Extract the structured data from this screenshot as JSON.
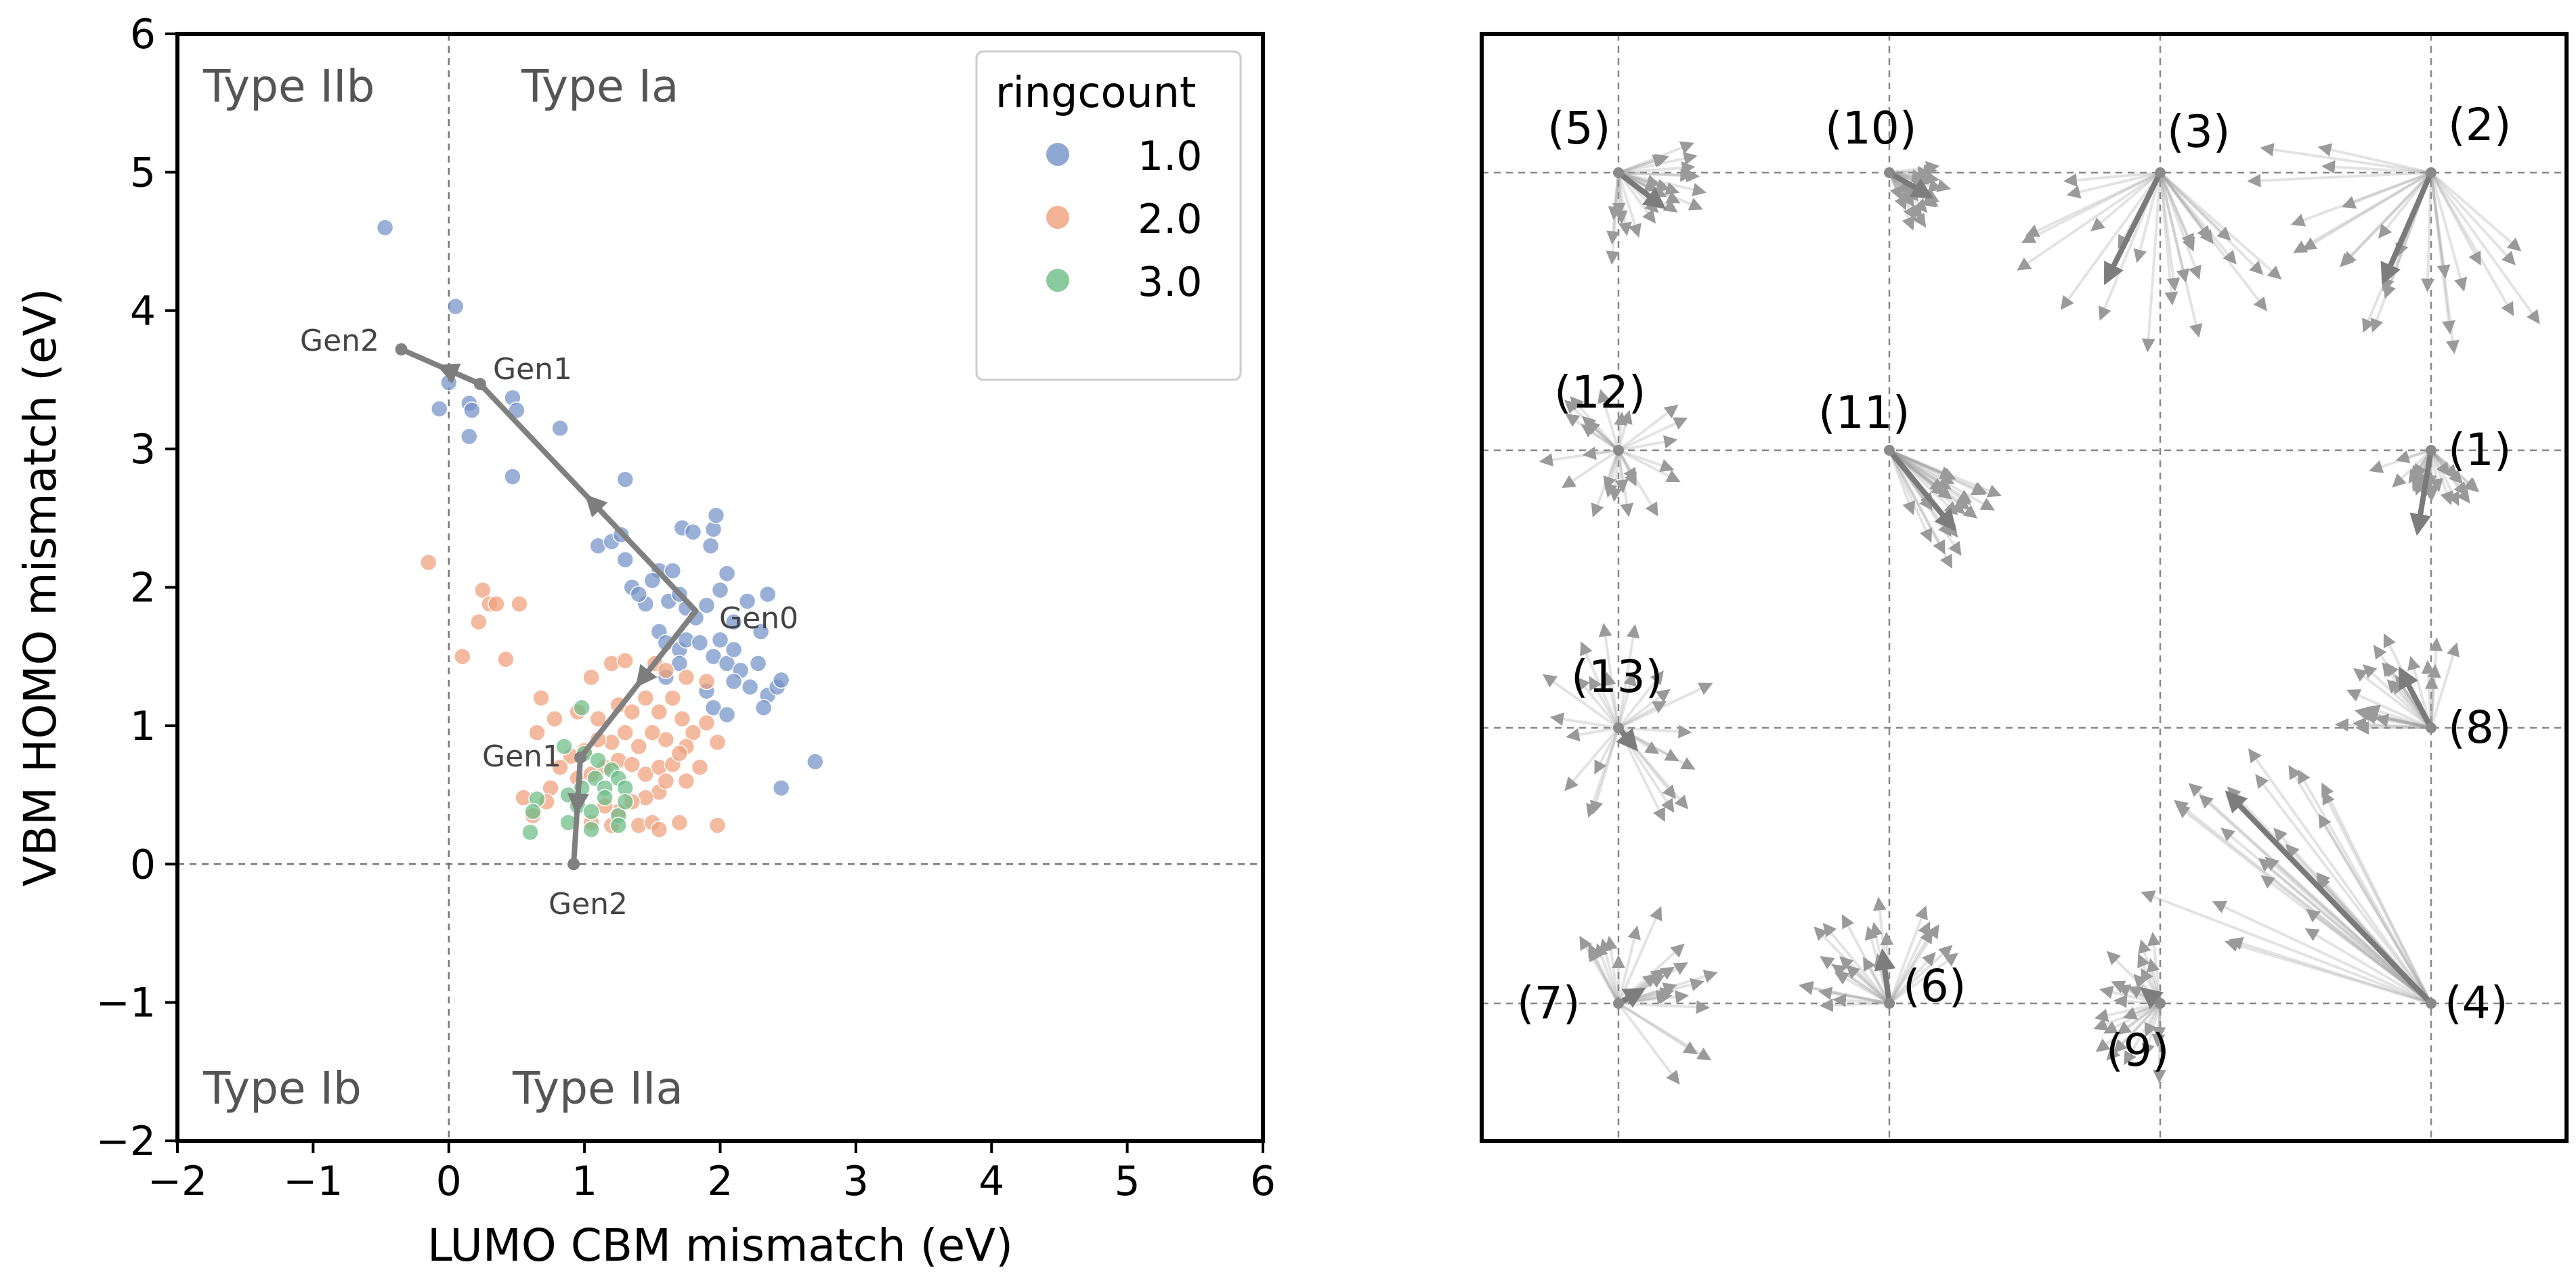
{
  "chart_data": [
    {
      "type": "scatter",
      "xlabel": "LUMO CBM mismatch (eV)",
      "ylabel": "VBM HOMO mismatch (eV)",
      "xlim": [
        -2,
        6
      ],
      "ylim": [
        -2,
        6
      ],
      "x_ticks": [
        "−2",
        "−1",
        "0",
        "1",
        "2",
        "3",
        "4",
        "5",
        "6"
      ],
      "y_ticks": [
        "−2",
        "−1",
        "0",
        "1",
        "2",
        "3",
        "4",
        "5",
        "6"
      ],
      "reference_lines": {
        "x": 0,
        "y": 0
      },
      "region_labels": [
        "Type IIb",
        "Type Ia",
        "Type Ib",
        "Type IIa"
      ],
      "legend": {
        "title": "ringcount",
        "placement": "top-right",
        "entries": [
          "1.0",
          "2.0",
          "3.0"
        ]
      },
      "series": [
        {
          "name": "1.0",
          "color": "#7391c8",
          "points": [
            [
              -0.47,
              4.6
            ],
            [
              0.05,
              4.03
            ],
            [
              0.0,
              3.48
            ],
            [
              0.15,
              3.33
            ],
            [
              0.17,
              3.28
            ],
            [
              -0.07,
              3.29
            ],
            [
              0.15,
              3.09
            ],
            [
              0.47,
              3.37
            ],
            [
              0.5,
              3.28
            ],
            [
              0.82,
              3.15
            ],
            [
              0.47,
              2.8
            ],
            [
              1.3,
              2.78
            ],
            [
              1.1,
              2.3
            ],
            [
              1.2,
              2.33
            ],
            [
              1.27,
              2.38
            ],
            [
              1.3,
              2.2
            ],
            [
              1.55,
              2.12
            ],
            [
              1.65,
              2.12
            ],
            [
              1.72,
              2.43
            ],
            [
              1.8,
              2.4
            ],
            [
              1.95,
              2.42
            ],
            [
              1.97,
              2.52
            ],
            [
              1.93,
              2.3
            ],
            [
              2.05,
              2.1
            ],
            [
              2.35,
              1.95
            ],
            [
              2.2,
              1.9
            ],
            [
              2.0,
              1.98
            ],
            [
              1.9,
              1.87
            ],
            [
              1.75,
              1.85
            ],
            [
              1.62,
              1.9
            ],
            [
              1.5,
              2.05
            ],
            [
              1.45,
              1.88
            ],
            [
              1.7,
              1.95
            ],
            [
              1.82,
              1.78
            ],
            [
              2.1,
              1.75
            ],
            [
              2.3,
              1.68
            ],
            [
              1.55,
              1.68
            ],
            [
              1.6,
              1.6
            ],
            [
              1.7,
              1.55
            ],
            [
              1.75,
              1.62
            ],
            [
              1.85,
              1.6
            ],
            [
              1.95,
              1.5
            ],
            [
              2.05,
              1.45
            ],
            [
              2.15,
              1.4
            ],
            [
              2.1,
              1.32
            ],
            [
              2.28,
              1.45
            ],
            [
              2.22,
              1.28
            ],
            [
              2.35,
              1.22
            ],
            [
              2.42,
              1.28
            ],
            [
              2.45,
              1.33
            ],
            [
              1.9,
              1.25
            ],
            [
              1.95,
              1.13
            ],
            [
              2.05,
              1.08
            ],
            [
              2.32,
              1.13
            ],
            [
              2.45,
              0.55
            ],
            [
              2.7,
              0.74
            ],
            [
              1.35,
              2.0
            ],
            [
              1.4,
              1.95
            ],
            [
              2.1,
              1.55
            ],
            [
              2.0,
              1.62
            ],
            [
              1.7,
              1.45
            ],
            [
              1.6,
              1.35
            ]
          ]
        },
        {
          "name": "2.0",
          "color": "#ee9f7a",
          "points": [
            [
              -0.15,
              2.18
            ],
            [
              0.25,
              1.98
            ],
            [
              0.3,
              1.88
            ],
            [
              0.35,
              1.88
            ],
            [
              0.52,
              1.88
            ],
            [
              0.22,
              1.75
            ],
            [
              0.1,
              1.5
            ],
            [
              0.42,
              1.48
            ],
            [
              1.05,
              1.35
            ],
            [
              1.2,
              1.45
            ],
            [
              1.3,
              1.47
            ],
            [
              1.52,
              1.45
            ],
            [
              1.6,
              1.4
            ],
            [
              1.75,
              1.35
            ],
            [
              1.9,
              1.32
            ],
            [
              0.68,
              1.2
            ],
            [
              0.78,
              1.05
            ],
            [
              0.65,
              0.95
            ],
            [
              0.95,
              1.1
            ],
            [
              1.1,
              1.05
            ],
            [
              1.25,
              1.15
            ],
            [
              1.35,
              1.1
            ],
            [
              1.45,
              1.2
            ],
            [
              1.55,
              1.1
            ],
            [
              1.65,
              1.2
            ],
            [
              1.72,
              1.05
            ],
            [
              1.8,
              0.95
            ],
            [
              1.9,
              1.02
            ],
            [
              1.98,
              0.88
            ],
            [
              1.75,
              0.85
            ],
            [
              1.6,
              0.9
            ],
            [
              1.5,
              0.95
            ],
            [
              1.4,
              0.85
            ],
            [
              1.3,
              0.95
            ],
            [
              1.2,
              0.88
            ],
            [
              1.1,
              0.9
            ],
            [
              1.0,
              0.82
            ],
            [
              0.9,
              0.78
            ],
            [
              0.82,
              0.7
            ],
            [
              0.95,
              0.62
            ],
            [
              1.05,
              0.65
            ],
            [
              1.15,
              0.7
            ],
            [
              1.25,
              0.75
            ],
            [
              1.35,
              0.72
            ],
            [
              1.45,
              0.65
            ],
            [
              1.55,
              0.7
            ],
            [
              1.65,
              0.72
            ],
            [
              1.75,
              0.6
            ],
            [
              1.55,
              0.52
            ],
            [
              1.45,
              0.48
            ],
            [
              1.35,
              0.45
            ],
            [
              1.25,
              0.38
            ],
            [
              1.15,
              0.42
            ],
            [
              1.05,
              0.3
            ],
            [
              1.2,
              0.28
            ],
            [
              1.4,
              0.28
            ],
            [
              1.5,
              0.3
            ],
            [
              1.55,
              0.25
            ],
            [
              1.7,
              0.3
            ],
            [
              1.98,
              0.28
            ],
            [
              0.75,
              0.55
            ],
            [
              0.55,
              0.48
            ],
            [
              0.62,
              0.35
            ],
            [
              0.72,
              0.45
            ],
            [
              1.6,
              0.6
            ],
            [
              1.7,
              0.8
            ],
            [
              1.85,
              0.7
            ]
          ]
        },
        {
          "name": "3.0",
          "color": "#6bbd86",
          "points": [
            [
              0.98,
              1.13
            ],
            [
              0.85,
              0.85
            ],
            [
              1.0,
              0.8
            ],
            [
              1.1,
              0.75
            ],
            [
              1.2,
              0.68
            ],
            [
              1.25,
              0.62
            ],
            [
              1.08,
              0.62
            ],
            [
              0.98,
              0.55
            ],
            [
              1.15,
              0.55
            ],
            [
              1.3,
              0.55
            ],
            [
              0.88,
              0.5
            ],
            [
              0.95,
              0.42
            ],
            [
              1.05,
              0.38
            ],
            [
              1.15,
              0.48
            ],
            [
              1.25,
              0.35
            ],
            [
              1.3,
              0.45
            ],
            [
              0.65,
              0.47
            ],
            [
              0.62,
              0.38
            ],
            [
              0.88,
              0.3
            ],
            [
              1.05,
              0.25
            ],
            [
              0.6,
              0.23
            ],
            [
              1.25,
              0.28
            ]
          ]
        }
      ],
      "trajectories": [
        {
          "labels": [
            "Gen0",
            "Gen1",
            "Gen2"
          ],
          "points": [
            [
              1.82,
              1.83
            ],
            [
              0.23,
              3.47
            ],
            [
              -0.35,
              3.72
            ]
          ]
        },
        {
          "labels": [
            "Gen0",
            "Gen1",
            "Gen2"
          ],
          "points": [
            [
              1.82,
              1.83
            ],
            [
              0.97,
              0.77
            ],
            [
              0.92,
              0.0
            ]
          ]
        }
      ]
    },
    {
      "type": "vector-field",
      "node_labels": [
        "(1)",
        "(2)",
        "(3)",
        "(4)",
        "(5)",
        "(6)",
        "(7)",
        "(8)",
        "(9)",
        "(10)",
        "(11)",
        "(12)",
        "(13)"
      ]
    }
  ]
}
